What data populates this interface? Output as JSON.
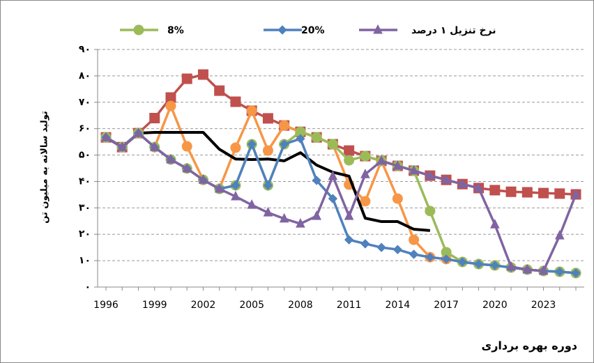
{
  "chart_data": {
    "type": "line",
    "y_label": "تولید سالانه به میلیون تن",
    "x_label": "دوره بهره برداری",
    "categories": [
      "1996",
      null,
      null,
      "1999",
      null,
      null,
      "2002",
      null,
      null,
      "2005",
      null,
      null,
      "2008",
      null,
      null,
      "2011",
      null,
      null,
      "2014",
      null,
      null,
      "2017",
      null,
      null,
      "2020",
      null,
      null,
      "2023",
      null,
      null
    ],
    "ylim": [
      0,
      90
    ],
    "yticks": [
      {
        "value": 0,
        "label": "۰"
      },
      {
        "value": 10,
        "label": "۱۰"
      },
      {
        "value": 20,
        "label": "۲۰"
      },
      {
        "value": 30,
        "label": "۳۰"
      },
      {
        "value": 40,
        "label": "۴۰"
      },
      {
        "value": 50,
        "label": "۵۰"
      },
      {
        "value": 60,
        "label": "۶۰"
      },
      {
        "value": 70,
        "label": "۷۰"
      },
      {
        "value": 80,
        "label": "۸۰"
      },
      {
        "value": 90,
        "label": "۹۰"
      }
    ],
    "grid": true,
    "legend": "top",
    "series": [
      {
        "color": "#c0504d",
        "marker": "square",
        "values": [
          56.7,
          53,
          58.3,
          64,
          71.8,
          78.9,
          80.5,
          74.4,
          70.2,
          66.8,
          63.9,
          61.2,
          58.8,
          56.7,
          54.1,
          51.7,
          49.6,
          47.8,
          45.9,
          44.1,
          42.2,
          40.6,
          39,
          37.5,
          36.7,
          36.1,
          35.9,
          35.6,
          35.4,
          35.1
        ]
      },
      {
        "color": "#f79646",
        "marker": "circle",
        "values": [
          56.7,
          53,
          58.3,
          53,
          68.6,
          53.3,
          40.6,
          37.2,
          52.8,
          66.8,
          51.7,
          61.2,
          58.8,
          56.7,
          54.1,
          38.8,
          32.5,
          47.8,
          33.5,
          17.9,
          11.3,
          10.6,
          9.5,
          8.7,
          8.2,
          7.4,
          6.6,
          6.1,
          5.8,
          5.3
        ]
      },
      {
        "color": "#000000",
        "marker": "none",
        "values": [
          56.7,
          53,
          58.3,
          58.6,
          58.6,
          58.6,
          58.6,
          52.2,
          48.5,
          48.3,
          48.5,
          47.8,
          50.9,
          46.2,
          43.5,
          42,
          26.1,
          24.8,
          24.8,
          21.9,
          21.4,
          null,
          null,
          null,
          null,
          null,
          null,
          null,
          null,
          null
        ]
      },
      {
        "name": "8%",
        "color": "#9bbb59",
        "marker": "circle",
        "values": [
          56.7,
          53,
          58.3,
          53,
          48.3,
          44.9,
          40.6,
          37.2,
          38.5,
          54.1,
          38.5,
          54.1,
          58.8,
          56.7,
          54.1,
          48,
          49.6,
          47.8,
          45.9,
          44.1,
          28.8,
          13.2,
          9.5,
          8.7,
          8.2,
          7.4,
          6.6,
          6.1,
          5.8,
          5.3
        ]
      },
      {
        "name": "20%",
        "color": "#4f81bd",
        "marker": "diamond",
        "values": [
          56.7,
          53,
          58.3,
          53,
          48.3,
          44.9,
          40.6,
          37.2,
          38.5,
          54.1,
          38.5,
          54.1,
          56.2,
          40.4,
          33.5,
          17.9,
          16.4,
          15,
          14.2,
          12.4,
          11.3,
          10.6,
          9.5,
          8.7,
          8.2,
          7.4,
          6.6,
          6.1,
          5.8,
          5.3
        ]
      },
      {
        "name": "نرخ تنزیل ۱ درصد",
        "color": "#8064a2",
        "marker": "triangle",
        "values": [
          56.7,
          53,
          58.3,
          53,
          48.3,
          44.9,
          40.6,
          37.2,
          34.3,
          31.1,
          28.2,
          25.9,
          24,
          26.9,
          42,
          26.9,
          42.7,
          47.8,
          45.9,
          44.1,
          42.2,
          40.6,
          39,
          37.5,
          23.7,
          7.7,
          6.6,
          6.1,
          19.5,
          35.1
        ]
      }
    ]
  }
}
